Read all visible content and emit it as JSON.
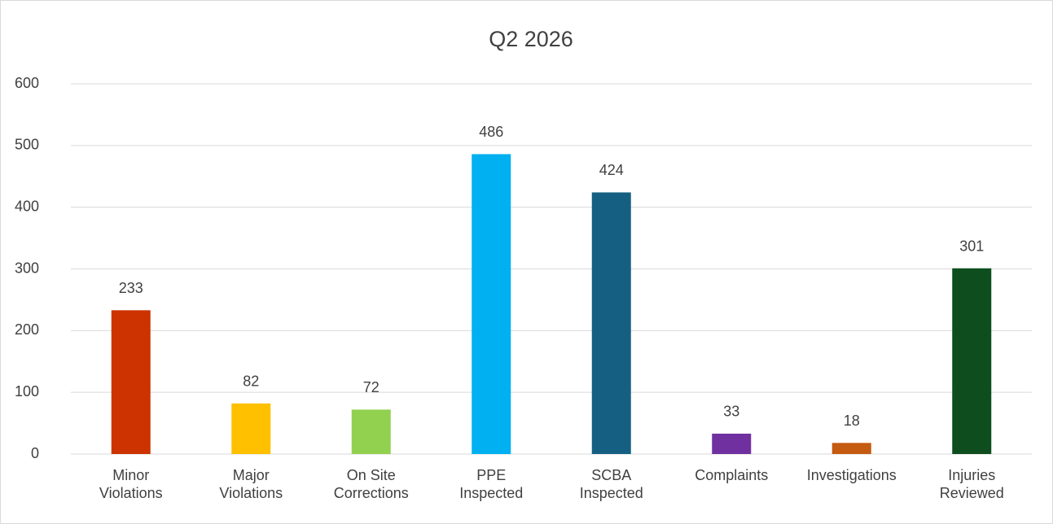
{
  "chart_data": {
    "type": "bar",
    "title": "Q2 2026",
    "categories": [
      "Minor Violations",
      "Major Violations",
      "On Site Corrections",
      "PPE Inspected",
      "SCBA Inspected",
      "Complaints",
      "Investigations",
      "Injuries Reviewed"
    ],
    "values": [
      233,
      82,
      72,
      486,
      424,
      33,
      18,
      301
    ],
    "colors": [
      "#cc3300",
      "#ffc000",
      "#92d050",
      "#00b0f0",
      "#156082",
      "#7030a0",
      "#c55a11",
      "#0e4d1e"
    ],
    "ylim": [
      0,
      600
    ],
    "yticks": [
      0,
      100,
      200,
      300,
      400,
      500,
      600
    ],
    "grid": true
  }
}
